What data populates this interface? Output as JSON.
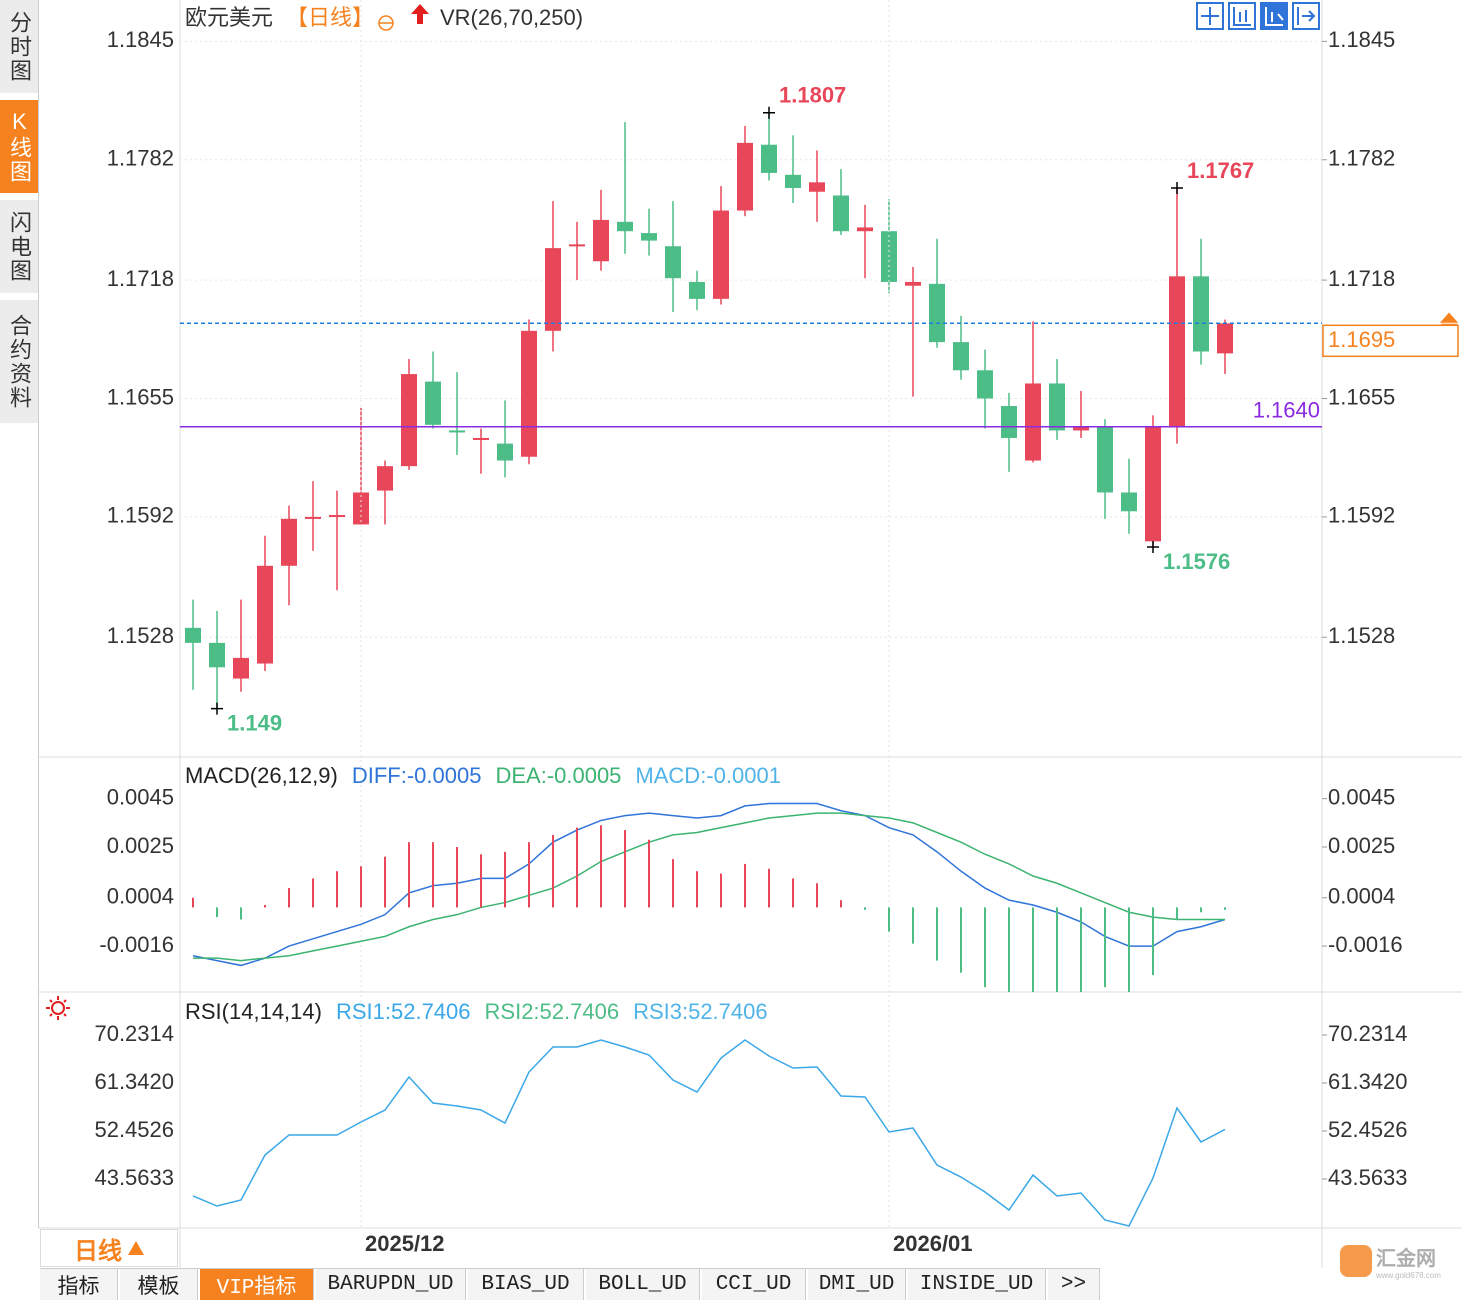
{
  "chart_data": [
    {
      "type": "candlestick",
      "title": "欧元美元",
      "period": "【日线】",
      "indicator": "VR(26,70,250)",
      "categories": [
        null,
        null,
        null,
        null,
        null,
        null,
        null,
        "2025/12",
        null,
        null,
        null,
        null,
        null,
        null,
        null,
        null,
        null,
        null,
        null,
        null,
        null,
        null,
        null,
        null,
        null,
        null,
        null,
        null,
        null,
        "2026/01",
        null,
        null,
        null,
        null,
        null,
        null,
        null,
        null,
        null,
        null,
        null,
        null,
        null,
        null
      ],
      "open": [
        1.1533,
        1.1525,
        1.1506,
        1.1514,
        1.1566,
        1.1591,
        1.1592,
        1.1588,
        1.1606,
        1.1619,
        1.1664,
        1.1638,
        1.1633,
        1.1631,
        1.1624,
        1.1691,
        1.1736,
        1.1728,
        1.1749,
        1.1743,
        1.1736,
        1.1717,
        1.1708,
        1.1755,
        1.179,
        1.1774,
        1.1765,
        1.1763,
        1.1744,
        1.1744,
        1.1715,
        1.1716,
        1.1685,
        1.167,
        1.1651,
        1.1622,
        1.1663,
        1.1638,
        1.164,
        1.1605,
        1.1579,
        1.164,
        1.172,
        1.1679
      ],
      "high": [
        1.1548,
        1.1542,
        1.1548,
        1.1582,
        1.1598,
        1.1611,
        1.1606,
        1.165,
        1.1622,
        1.1676,
        1.168,
        1.1669,
        1.1639,
        1.1654,
        1.1697,
        1.176,
        1.1749,
        1.1766,
        1.1802,
        1.1756,
        1.176,
        1.1723,
        1.1768,
        1.18,
        1.1807,
        1.1795,
        1.1787,
        1.1777,
        1.1758,
        1.1761,
        1.1725,
        1.174,
        1.1699,
        1.1681,
        1.1658,
        1.1696,
        1.1676,
        1.1659,
        1.1644,
        1.1623,
        1.1646,
        1.1767,
        1.174,
        1.1697
      ],
      "low": [
        1.15,
        1.149,
        1.1499,
        1.151,
        1.1545,
        1.1574,
        1.1553,
        1.1588,
        1.1588,
        1.1617,
        1.1639,
        1.1625,
        1.1615,
        1.1613,
        1.162,
        1.168,
        1.1718,
        1.1723,
        1.1732,
        1.1731,
        1.1701,
        1.1702,
        1.1705,
        1.1752,
        1.1771,
        1.1759,
        1.1749,
        1.1742,
        1.1719,
        1.1711,
        1.1656,
        1.1682,
        1.1665,
        1.1639,
        1.1616,
        1.1621,
        1.1633,
        1.1634,
        1.1591,
        1.1583,
        1.1576,
        1.1631,
        1.1673,
        1.1668
      ],
      "close": [
        1.1525,
        1.1512,
        1.1517,
        1.1566,
        1.1591,
        1.1592,
        1.1593,
        1.1605,
        1.1619,
        1.1668,
        1.1641,
        1.1637,
        1.1634,
        1.1622,
        1.1691,
        1.1735,
        1.1737,
        1.175,
        1.1744,
        1.1739,
        1.1719,
        1.1708,
        1.1755,
        1.1791,
        1.1775,
        1.1767,
        1.177,
        1.1744,
        1.1746,
        1.1717,
        1.1717,
        1.1685,
        1.167,
        1.1655,
        1.1634,
        1.1663,
        1.1638,
        1.164,
        1.1605,
        1.1595,
        1.164,
        1.172,
        1.168,
        1.1695
      ],
      "up_color": "#e8475a",
      "down_color": "#4dbd87",
      "high_marks": [
        1.1807,
        1.1767
      ],
      "low_marks": [
        1.1576,
        1.149
      ],
      "price_line": {
        "value": 1.164,
        "label": "1.1640",
        "color": "#8a2be2"
      },
      "last_price": {
        "value": 1.1695,
        "label": "1.1695",
        "color": "#1e7de0",
        "box_color": "#f5821f"
      },
      "ylim": [
        1.1468,
        1.1867
      ],
      "yticks": [
        1.1845,
        1.1782,
        1.1718,
        1.1655,
        1.1592,
        1.1528
      ],
      "grid": true
    },
    {
      "type": "line",
      "title": "MACD(26,12,9)",
      "series": [
        {
          "name": "DIFF:-0.0005",
          "color": "#2f74d8",
          "values": [
            -0.002,
            -0.0022,
            -0.0024,
            -0.0021,
            -0.0016,
            -0.0013,
            -0.001,
            -0.0007,
            -0.0003,
            0.0006,
            0.0009,
            0.001,
            0.0012,
            0.0012,
            0.0018,
            0.0027,
            0.0032,
            0.0036,
            0.0038,
            0.0039,
            0.0038,
            0.0037,
            0.0038,
            0.0042,
            0.0043,
            0.0043,
            0.0043,
            0.004,
            0.0038,
            0.0033,
            0.003,
            0.0023,
            0.0015,
            0.0008,
            0.0003,
            0.0001,
            -0.0002,
            -0.0006,
            -0.0012,
            -0.0016,
            -0.0016,
            -0.001,
            -0.0008,
            -0.0005
          ]
        },
        {
          "name": "DEA:-0.0005",
          "color": "#3cb371",
          "values": [
            -0.0021,
            -0.0021,
            -0.0022,
            -0.0021,
            -0.002,
            -0.0018,
            -0.0016,
            -0.0014,
            -0.0012,
            -0.0008,
            -0.0005,
            -0.0003,
            0,
            0.0002,
            0.0005,
            0.0008,
            0.0013,
            0.0019,
            0.0023,
            0.0027,
            0.003,
            0.0031,
            0.0033,
            0.0035,
            0.0037,
            0.0038,
            0.0039,
            0.0039,
            0.0038,
            0.0037,
            0.0035,
            0.0031,
            0.0027,
            0.0022,
            0.0018,
            0.0013,
            0.001,
            0.0006,
            0.0002,
            -0.0002,
            -0.0004,
            -0.0005,
            -0.0005,
            -0.0005
          ]
        },
        {
          "name": "MACD:-0.0001",
          "color": "#4fb3e8",
          "style": "histogram",
          "up_color": "#e8475a",
          "down_color": "#4dbd87",
          "values": [
            0.0004,
            -0.0004,
            -0.0005,
            0.0001,
            0.0008,
            0.0012,
            0.0015,
            0.0017,
            0.0021,
            0.0027,
            0.0027,
            0.0025,
            0.0022,
            0.0023,
            0.0027,
            0.003,
            0.0033,
            0.0034,
            0.0032,
            0.0028,
            0.002,
            0.0015,
            0.0014,
            0.0018,
            0.0016,
            0.0012,
            0.001,
            0.0003,
            -0.0001,
            -0.001,
            -0.0015,
            -0.0022,
            -0.0027,
            -0.0033,
            -0.0035,
            -0.0035,
            -0.0035,
            -0.0035,
            -0.0033,
            -0.0035,
            -0.0028,
            -0.0005,
            -0.0002,
            -0.0001
          ]
        }
      ],
      "ylim": [
        -0.0035,
        0.0061
      ],
      "yticks": [
        0.0045,
        0.0025,
        0.0004,
        -0.0016
      ],
      "grid": false
    },
    {
      "type": "line",
      "title": "RSI(14,14,14)",
      "series": [
        {
          "name": "RSI1:52.7406",
          "color": "#3aa8e8",
          "values": [
            40.42,
            38.56,
            39.68,
            48.01,
            51.71,
            51.71,
            51.71,
            54.12,
            56.34,
            62.45,
            57.64,
            57.08,
            56.34,
            53.93,
            63.38,
            68.01,
            68.01,
            69.3,
            68.01,
            66.53,
            61.9,
            59.67,
            65.97,
            69.3,
            66.34,
            64.12,
            64.3,
            58.93,
            58.75,
            52.27,
            53.01,
            46.16,
            43.93,
            41.16,
            37.82,
            44.3,
            40.42,
            40.97,
            35.97,
            34.86,
            43.75,
            56.71,
            50.42,
            52.7406
          ]
        }
      ],
      "legend_extra": [
        {
          "name": "RSI2:52.7406",
          "color": "#4dbd87"
        },
        {
          "name": "RSI3:52.7406",
          "color": "#4fb3e8"
        }
      ],
      "ylim": [
        34.49,
        77.64
      ],
      "yticks": [
        70.2314,
        {
          "value": 61.342,
          "label": "61.3420"
        },
        52.4526,
        43.5633
      ],
      "grid": false
    }
  ],
  "sidebar": {
    "tabs": [
      "分时图",
      "K线图",
      "闪电图",
      "合约资料"
    ],
    "active": 1
  },
  "period_button": "日线",
  "bottom_tabs": {
    "tabs": [
      "指标",
      "模板",
      "VIP指标",
      "BARUPDN_UD",
      "BIAS_UD",
      "BOLL_UD",
      "CCI_UD",
      "DMI_UD",
      "INSIDE_UD",
      ">>"
    ],
    "active": 2
  },
  "watermark": {
    "name": "汇金网",
    "url": "www.gold678.com"
  }
}
